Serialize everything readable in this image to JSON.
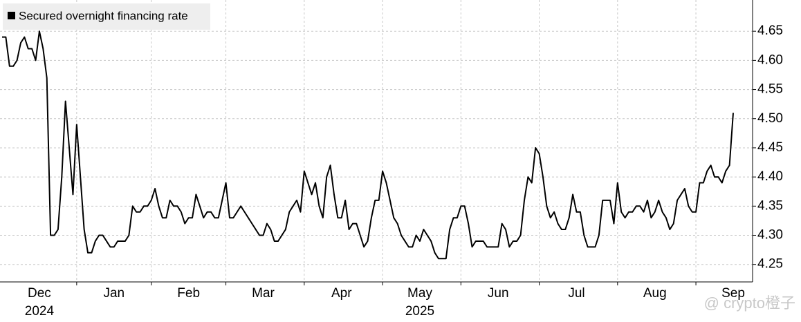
{
  "chart_data": {
    "type": "line",
    "legend": "Secured overnight financing rate",
    "color": "#000000",
    "watermark": "@ crypto橙子",
    "categories": [
      null,
      null,
      null,
      null,
      null,
      null,
      null,
      null,
      null,
      null,
      "Dec\n2024",
      null,
      null,
      null,
      null,
      null,
      null,
      null,
      null,
      null,
      null,
      null,
      null,
      null,
      null,
      null,
      null,
      null,
      null,
      null,
      "Jan",
      null,
      null,
      null,
      null,
      null,
      null,
      null,
      null,
      null,
      null,
      null,
      null,
      null,
      null,
      null,
      null,
      null,
      null,
      null,
      "Feb",
      null,
      null,
      null,
      null,
      null,
      null,
      null,
      null,
      null,
      null,
      null,
      null,
      null,
      null,
      null,
      null,
      null,
      null,
      null,
      "Mar",
      null,
      null,
      null,
      null,
      null,
      null,
      null,
      null,
      null,
      null,
      null,
      null,
      null,
      null,
      null,
      null,
      null,
      null,
      null,
      null,
      "Apr",
      null,
      null,
      null,
      null,
      null,
      null,
      null,
      null,
      null,
      null,
      null,
      null,
      null,
      null,
      null,
      null,
      null,
      null,
      null,
      null,
      "May\n2025",
      null,
      null,
      null,
      null,
      null,
      null,
      null,
      null,
      null,
      null,
      null,
      null,
      null,
      null,
      null,
      null,
      null,
      null,
      null,
      null,
      "Jun",
      null,
      null,
      null,
      null,
      null,
      null,
      null,
      null,
      null,
      null,
      null,
      null,
      null,
      null,
      null,
      null,
      null,
      null,
      null,
      null,
      "Jul",
      null,
      null,
      null,
      null,
      null,
      null,
      null,
      null,
      null,
      null,
      null,
      null,
      null,
      null,
      null,
      null,
      null,
      null,
      null,
      null,
      "Aug",
      null,
      null,
      null,
      null,
      null,
      null,
      null,
      null,
      null,
      null,
      null,
      null,
      null,
      null,
      null,
      null,
      null,
      null,
      null,
      null,
      "Sep"
    ],
    "values": [
      4.64,
      4.64,
      4.59,
      4.59,
      4.6,
      4.63,
      4.64,
      4.62,
      4.62,
      4.6,
      4.65,
      4.62,
      4.57,
      4.3,
      4.3,
      4.31,
      4.4,
      4.53,
      4.45,
      4.37,
      4.49,
      4.4,
      4.31,
      4.27,
      4.27,
      4.29,
      4.3,
      4.3,
      4.29,
      4.28,
      4.28,
      4.29,
      4.29,
      4.29,
      4.3,
      4.35,
      4.34,
      4.34,
      4.35,
      4.35,
      4.36,
      4.38,
      4.35,
      4.33,
      4.33,
      4.36,
      4.35,
      4.35,
      4.34,
      4.32,
      4.33,
      4.33,
      4.37,
      4.35,
      4.33,
      4.34,
      4.34,
      4.33,
      4.33,
      4.36,
      4.39,
      4.33,
      4.33,
      4.34,
      4.35,
      4.34,
      4.33,
      4.32,
      4.31,
      4.3,
      4.3,
      4.32,
      4.31,
      4.29,
      4.29,
      4.3,
      4.31,
      4.34,
      4.35,
      4.36,
      4.34,
      4.41,
      4.39,
      4.37,
      4.39,
      4.35,
      4.33,
      4.4,
      4.42,
      4.37,
      4.33,
      4.33,
      4.36,
      4.31,
      4.32,
      4.32,
      4.3,
      4.28,
      4.29,
      4.33,
      4.36,
      4.36,
      4.41,
      4.39,
      4.36,
      4.33,
      4.32,
      4.3,
      4.29,
      4.28,
      4.28,
      4.3,
      4.29,
      4.31,
      4.3,
      4.29,
      4.27,
      4.26,
      4.26,
      4.26,
      4.31,
      4.33,
      4.33,
      4.35,
      4.35,
      4.32,
      4.28,
      4.29,
      4.29,
      4.29,
      4.28,
      4.28,
      4.28,
      4.28,
      4.32,
      4.31,
      4.28,
      4.29,
      4.29,
      4.3,
      4.36,
      4.4,
      4.39,
      4.45,
      4.44,
      4.4,
      4.35,
      4.33,
      4.34,
      4.32,
      4.31,
      4.31,
      4.33,
      4.37,
      4.34,
      4.34,
      4.3,
      4.28,
      4.28,
      4.28,
      4.3,
      4.36,
      4.36,
      4.36,
      4.32,
      4.39,
      4.34,
      4.33,
      4.34,
      4.34,
      4.35,
      4.35,
      4.34,
      4.36,
      4.33,
      4.34,
      4.36,
      4.34,
      4.33,
      4.31,
      4.32,
      4.36,
      4.37,
      4.38,
      4.35,
      4.34,
      4.34,
      4.39,
      4.39,
      4.41,
      4.42,
      4.4,
      4.4,
      4.39,
      4.41,
      4.42,
      4.51
    ],
    "ylim": [
      4.22,
      4.7
    ],
    "yticks": [
      4.25,
      {
        "value": 4.3,
        "label": "4.30"
      },
      4.35,
      {
        "value": 4.4,
        "label": "4.40"
      },
      4.45,
      {
        "value": 4.5,
        "label": "4.50"
      },
      4.55,
      {
        "value": 4.6,
        "label": "4.60"
      },
      4.65
    ],
    "grid": true
  }
}
